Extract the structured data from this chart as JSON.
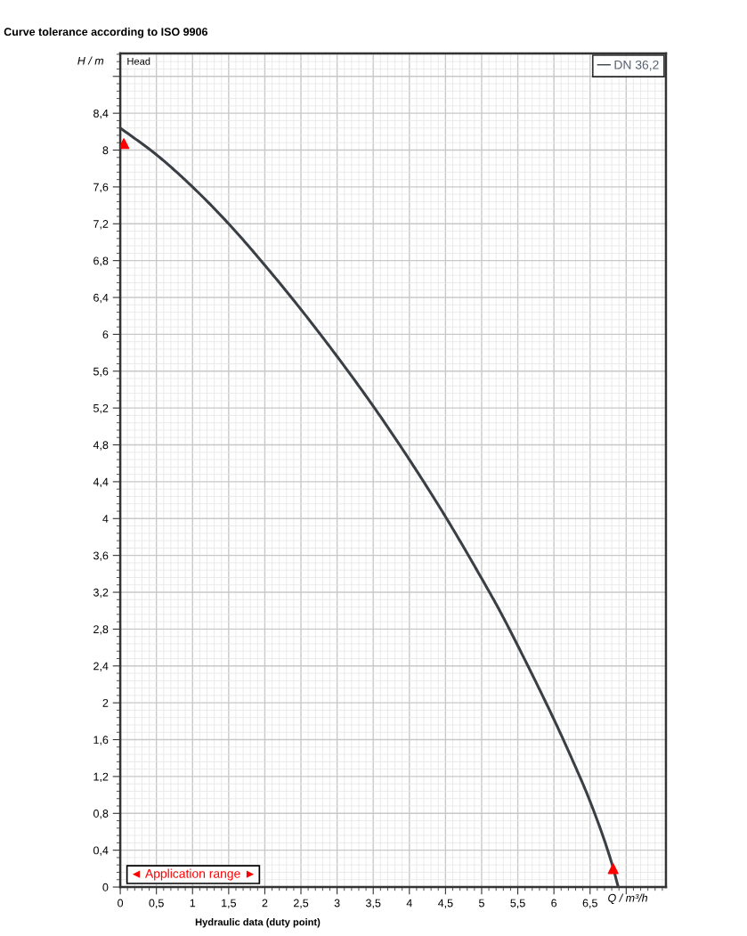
{
  "chart_data": {
    "type": "line",
    "title": "Curve tolerance according to ISO 9906",
    "xlabel": "Q / m³/h",
    "ylabel": "H / m",
    "annotations": [
      "Head",
      "Hydraulic data (duty point)",
      "◄ Application range ►"
    ],
    "xlim": [
      0,
      7.55
    ],
    "ylim": [
      0,
      9.05
    ],
    "xticks": [
      0,
      {
        "value": 0.5,
        "label": "0,5"
      },
      1,
      {
        "value": 1.5,
        "label": "1,5"
      },
      2,
      {
        "value": 2.5,
        "label": "2,5"
      },
      3,
      {
        "value": 3.5,
        "label": "3,5"
      },
      4,
      {
        "value": 4.5,
        "label": "4,5"
      },
      5,
      {
        "value": 5.5,
        "label": "5,5"
      },
      6,
      {
        "value": 6.5,
        "label": "6,5"
      },
      {
        "value": 7,
        "label": null
      }
    ],
    "yticks": [
      0,
      {
        "value": 0.4,
        "label": "0,4"
      },
      {
        "value": 0.8,
        "label": "0,8"
      },
      {
        "value": 1.2,
        "label": "1,2"
      },
      {
        "value": 1.6,
        "label": "1,6"
      },
      2,
      {
        "value": 2.4,
        "label": "2,4"
      },
      {
        "value": 2.8,
        "label": "2,8"
      },
      {
        "value": 3.2,
        "label": "3,2"
      },
      {
        "value": 3.6,
        "label": "3,6"
      },
      4,
      {
        "value": 4.4,
        "label": "4,4"
      },
      {
        "value": 4.8,
        "label": "4,8"
      },
      {
        "value": 5.2,
        "label": "5,2"
      },
      {
        "value": 5.6,
        "label": "5,6"
      },
      6,
      {
        "value": 6.4,
        "label": "6,4"
      },
      {
        "value": 6.8,
        "label": "6,8"
      },
      {
        "value": 7.2,
        "label": "7,2"
      },
      {
        "value": 7.6,
        "label": "7,6"
      },
      8,
      {
        "value": 8.4,
        "label": "8,4"
      },
      {
        "value": 8.8,
        "label": null
      }
    ],
    "grid": true,
    "legend": "top right",
    "series": [
      {
        "name": "DN 36,2",
        "color": "#3a3f45",
        "x": [
          0,
          0.5,
          1,
          1.5,
          2,
          2.5,
          3,
          3.5,
          4,
          4.5,
          5,
          5.25,
          5.5,
          6,
          6.25,
          6.5,
          6.8,
          6.89
        ],
        "values": [
          8.24,
          7.95,
          7.6,
          7.2,
          6.75,
          6.27,
          5.76,
          5.22,
          4.64,
          4.02,
          3.35,
          3.0,
          2.62,
          1.82,
          1.39,
          0.93,
          0.26,
          0
        ]
      },
      {
        "type": "scatter",
        "marker": "triangle",
        "color": "#ff0000",
        "x": [
          0.05,
          6.82
        ],
        "values": [
          8.07,
          0.2
        ]
      }
    ]
  }
}
